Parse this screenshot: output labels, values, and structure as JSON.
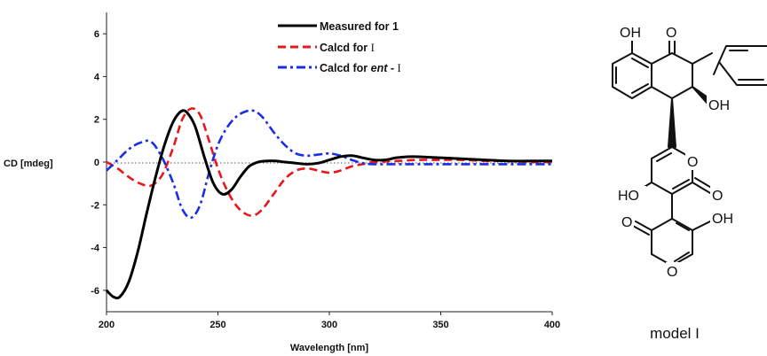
{
  "chart_data": {
    "type": "line",
    "xlabel": "Wavelength [nm]",
    "ylabel": "CD [mdeg]",
    "xlim": [
      200,
      400
    ],
    "ylim": [
      -7,
      7
    ],
    "xticks": [
      200,
      250,
      300,
      350,
      400
    ],
    "yticks": [
      -6,
      -4,
      -2,
      0,
      2,
      4,
      6
    ],
    "zero_line": "dotted",
    "grid": false,
    "legend_position": "top",
    "series": [
      {
        "name": "Measured for 1",
        "color": "#000000",
        "style": "solid",
        "x": [
          200,
          203,
          206,
          210,
          214,
          218,
          222,
          226,
          230,
          234,
          237,
          240,
          244,
          248,
          252,
          256,
          260,
          264,
          268,
          272,
          276,
          280,
          285,
          290,
          295,
          300,
          305,
          310,
          315,
          320,
          325,
          330,
          335,
          340,
          350,
          360,
          370,
          380,
          390,
          400
        ],
        "y": [
          -6.0,
          -6.3,
          -6.3,
          -5.6,
          -4.2,
          -2.4,
          -0.7,
          0.8,
          1.9,
          2.4,
          2.2,
          1.6,
          0.2,
          -1.0,
          -1.5,
          -1.3,
          -0.7,
          -0.2,
          0.0,
          0.05,
          0.05,
          0.0,
          -0.05,
          -0.1,
          -0.05,
          0.1,
          0.25,
          0.3,
          0.2,
          0.1,
          0.1,
          0.2,
          0.25,
          0.25,
          0.2,
          0.15,
          0.1,
          0.05,
          0.05,
          0.05
        ]
      },
      {
        "name": "Calcd for I",
        "color": "#e8171d",
        "style": "dashed",
        "x": [
          200,
          205,
          210,
          215,
          220,
          225,
          230,
          234,
          238,
          242,
          246,
          250,
          254,
          258,
          262,
          266,
          270,
          275,
          280,
          285,
          290,
          295,
          300,
          305,
          310,
          315,
          320,
          330,
          340,
          350,
          360,
          370,
          380,
          390,
          400
        ],
        "y": [
          0.0,
          -0.3,
          -0.7,
          -1.0,
          -1.1,
          -0.6,
          0.7,
          2.0,
          2.5,
          2.2,
          1.0,
          -0.3,
          -1.3,
          -2.0,
          -2.4,
          -2.5,
          -2.2,
          -1.5,
          -0.8,
          -0.4,
          -0.3,
          -0.4,
          -0.5,
          -0.4,
          -0.2,
          -0.1,
          0.0,
          0.05,
          0.1,
          0.1,
          0.1,
          0.05,
          0.05,
          0.0,
          0.0
        ]
      },
      {
        "name": "Calcd for ent - I",
        "color": "#1a2ee6",
        "style": "dashdot",
        "x": [
          200,
          205,
          210,
          215,
          220,
          225,
          230,
          234,
          238,
          242,
          246,
          250,
          254,
          258,
          262,
          266,
          270,
          275,
          280,
          285,
          290,
          295,
          300,
          305,
          310,
          315,
          320,
          330,
          340,
          350,
          360,
          370,
          380,
          390,
          400
        ],
        "y": [
          -0.4,
          0.1,
          0.6,
          0.9,
          0.95,
          0.2,
          -1.0,
          -2.2,
          -2.6,
          -2.0,
          -0.5,
          0.8,
          1.6,
          2.1,
          2.35,
          2.4,
          2.1,
          1.4,
          0.8,
          0.4,
          0.3,
          0.35,
          0.4,
          0.3,
          0.1,
          -0.05,
          -0.1,
          -0.1,
          -0.1,
          -0.1,
          -0.1,
          -0.1,
          -0.1,
          -0.1,
          -0.1
        ]
      }
    ]
  },
  "legend": {
    "measured": "Measured for 1",
    "calcd_prefix": "Calcd for ",
    "calcd_roman": "I",
    "ent_prefix": "Calcd for ",
    "ent_italic": "ent",
    "ent_suffix": " - ",
    "ent_roman": "I"
  },
  "molecule": {
    "caption": "model I",
    "labels": {
      "oh_top_left": "OH",
      "ketone_o": "O",
      "oh_mid": "OH",
      "ring_o": "O",
      "ho_left": "HO",
      "lactone_o1": "O",
      "lactone_o2": "O",
      "oh_right": "OH",
      "ring_o2": "O"
    }
  }
}
